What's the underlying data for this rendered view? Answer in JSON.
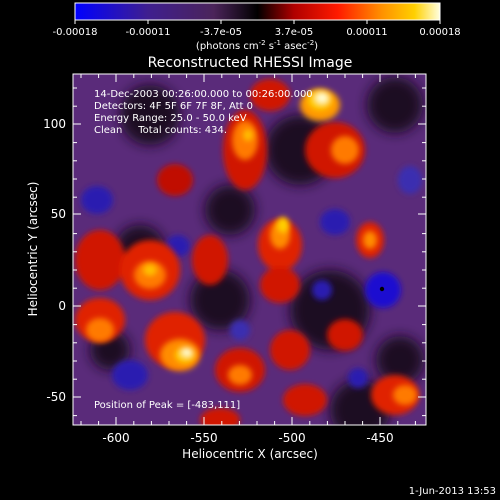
{
  "colorbar": {
    "ticks": [
      "-0.00018",
      "-0.00011",
      "-3.7e-05",
      "3.7e-05",
      "0.00011",
      "0.00018"
    ],
    "unit_label_main": "(photons cm",
    "unit_label_sup1": "-2",
    "unit_label_mid1": " s",
    "unit_label_sup2": "-1",
    "unit_label_mid2": " asec",
    "unit_label_sup3": "-2",
    "unit_label_end": ")"
  },
  "title": "Reconstructed RHESSI Image",
  "overlay": {
    "line1": "14-Dec-2003 00:26:00.000 to 00:26:00.000",
    "line2": "Detectors: 4F 5F 6F 7F 8F, Att 0",
    "line3": "Energy Range: 25.0 - 50.0 keV",
    "line4": "Clean     Total counts: 434.",
    "peak": "Position of Peak = [-483,111]"
  },
  "axes": {
    "xlabel": "Heliocentric X (arcsec)",
    "ylabel": "Heliocentric Y (arcsec)",
    "x_ticks": [
      "-600",
      "-550",
      "-500",
      "-450"
    ],
    "y_ticks": [
      "100",
      "50",
      "0",
      "-50"
    ]
  },
  "timestamp": "1-Jun-2013 13:53",
  "colors": {
    "background": "#000000",
    "text": "#ffffff",
    "colormap": [
      "#0000ff",
      "#3f1f8f",
      "#5a2b7a",
      "#000000",
      "#ff1a00",
      "#ff8c00",
      "#ffd000",
      "#ffffd6"
    ]
  }
}
